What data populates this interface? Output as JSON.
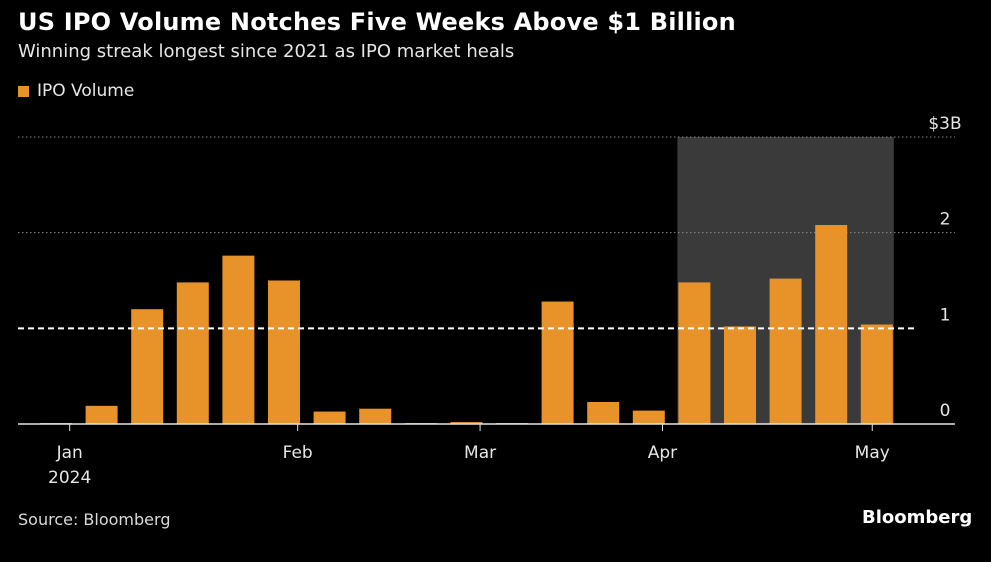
{
  "title": "US IPO Volume Notches Five Weeks Above $1 Billion",
  "subtitle": "Winning streak longest since 2021 as IPO market heals",
  "legend_label": "IPO Volume",
  "source": "Source: Bloomberg",
  "brand": "Bloomberg",
  "colors": {
    "bar": "#e8922a",
    "background": "#000000",
    "highlight": "#3a3a3a"
  },
  "chart_data": {
    "type": "bar",
    "title": "US IPO Volume Notches Five Weeks Above $1 Billion",
    "subtitle": "Winning streak longest since 2021 as IPO market heals",
    "series": [
      {
        "name": "IPO Volume",
        "values": [
          0.01,
          0.19,
          1.2,
          1.48,
          1.76,
          1.5,
          0.13,
          0.16,
          0.01,
          0.02,
          0.01,
          1.28,
          0.23,
          0.14,
          1.48,
          1.02,
          1.52,
          2.08,
          1.04
        ]
      }
    ],
    "week_index": [
      0,
      1,
      2,
      3,
      4,
      5,
      6,
      7,
      8,
      9,
      10,
      11,
      12,
      13,
      14,
      15,
      16,
      17,
      18
    ],
    "ylim": [
      0,
      3
    ],
    "yticks": [
      {
        "value": 3,
        "label": "$3B"
      },
      {
        "value": 2,
        "label": "2"
      },
      {
        "value": 1,
        "label": "1"
      },
      {
        "value": 0,
        "label": "0"
      }
    ],
    "xticks": [
      {
        "pos": 0.3,
        "label": "Jan",
        "sub": "2024"
      },
      {
        "pos": 5.3,
        "label": "Feb",
        "sub": ""
      },
      {
        "pos": 9.3,
        "label": "Mar",
        "sub": ""
      },
      {
        "pos": 13.3,
        "label": "Apr",
        "sub": ""
      },
      {
        "pos": 17.9,
        "label": "May",
        "sub": ""
      }
    ],
    "reference_line": {
      "value": 1,
      "style": "dashed"
    },
    "highlight_range": {
      "start_index": 14,
      "end_index": 18
    },
    "grid": true
  }
}
